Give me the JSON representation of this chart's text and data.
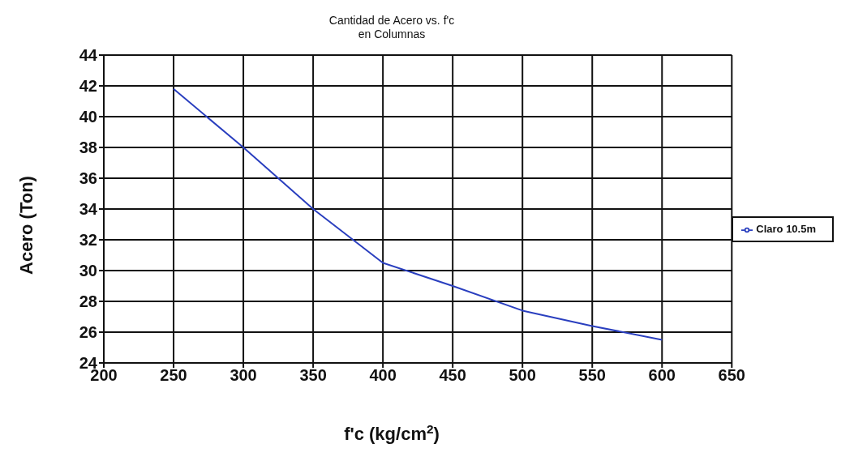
{
  "chart_data": {
    "type": "line",
    "title": "Cantidad de Acero vs. f'c\nen Columnas",
    "xlabel": "f'c (kg/cm$^{2}$)",
    "ylabel": "Acero (Ton)",
    "x": [
      250,
      300,
      350,
      400,
      450,
      500,
      550,
      600
    ],
    "series": [
      {
        "name": "Claro 10.5m",
        "color": "#2a3fbf",
        "values": [
          41.8,
          38,
          34,
          30.5,
          29,
          27.4,
          26.4,
          25.5
        ]
      }
    ],
    "xlim": [
      200,
      650
    ],
    "xticks": [
      200,
      250,
      300,
      350,
      400,
      450,
      500,
      550,
      600,
      650
    ],
    "ylim": [
      24,
      44
    ],
    "yticks": [
      24,
      26,
      28,
      30,
      32,
      34,
      36,
      38,
      40,
      42,
      44
    ],
    "grid": true,
    "legend": "right",
    "marker": "none",
    "line_style": "solid"
  }
}
